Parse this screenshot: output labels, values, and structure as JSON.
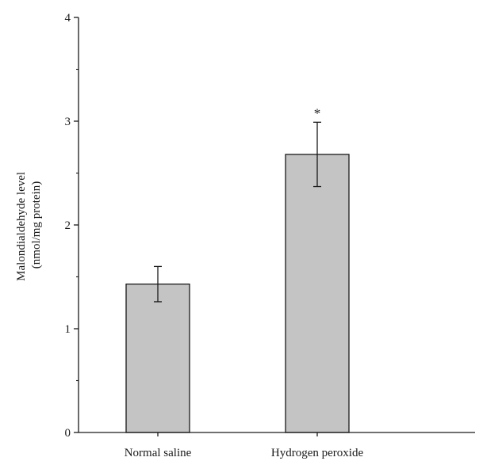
{
  "chart_data": {
    "type": "bar",
    "categories": [
      "Normal saline",
      "Hydrogen peroxide"
    ],
    "values": [
      1.43,
      2.68
    ],
    "errors": [
      0.17,
      0.31
    ],
    "annotations": [
      "",
      "*"
    ],
    "ylabel_line1": "Malondialdehyde level",
    "ylabel_line2": "(nmol/mg protein)",
    "ylim": [
      0,
      4
    ],
    "yticks": [
      "0",
      "1",
      "2",
      "3",
      "4"
    ],
    "bar_color": "#c4c4c4",
    "grid": false
  }
}
